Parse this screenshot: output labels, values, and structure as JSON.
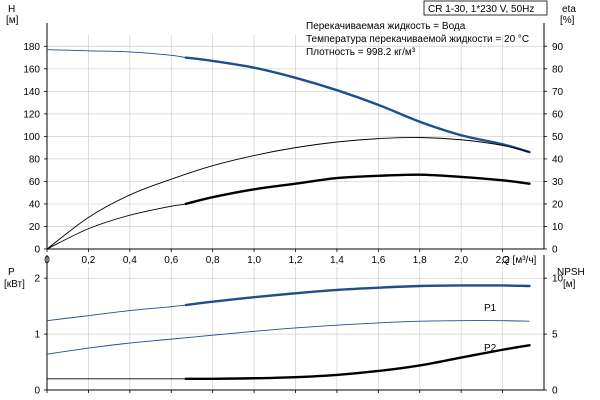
{
  "header": {
    "model": "CR 1-30, 1*230 V, 50Hz",
    "liquid": "Перекачиваемая жидкость = Вода",
    "temperature": "Температура перекачиваемой жидкости = 20 °C",
    "density": "Плотность = 998.2 кг/м³"
  },
  "colors": {
    "blue": "#1f4e8c",
    "black": "#000000",
    "grid": "#cfcfcf"
  },
  "chart_data": [
    {
      "id": "upper",
      "type": "line",
      "y_left_label": [
        "H",
        "[м]"
      ],
      "y_right_label": [
        "eta",
        "[%]"
      ],
      "x_label": "Q [м³/ч]",
      "xlim": [
        0,
        2.4
      ],
      "ylim_left": [
        0,
        190
      ],
      "ylim_right": [
        0,
        95
      ],
      "x_ticks": [
        "0",
        "0,2",
        "0,4",
        "0,6",
        "0,8",
        "1,0",
        "1,2",
        "1,4",
        "1,6",
        "1,8",
        "2,0",
        "2,2"
      ],
      "y_left_ticks": [
        0,
        20,
        40,
        60,
        80,
        100,
        120,
        140,
        160,
        180
      ],
      "y_right_ticks": [
        0,
        10,
        20,
        30,
        40,
        50,
        60,
        70,
        80,
        90
      ],
      "grid": true,
      "series": [
        {
          "axis": "left",
          "color": "#1f4e8c",
          "x": [
            0,
            0.2,
            0.4,
            0.6,
            0.67,
            0.8,
            1.0,
            1.2,
            1.4,
            1.6,
            1.8,
            2.0,
            2.2,
            2.33
          ],
          "y": [
            177,
            176,
            175,
            172,
            170,
            167,
            161,
            152,
            141,
            128,
            113,
            101,
            93,
            86
          ],
          "thick_from": 0.67
        },
        {
          "axis": "right",
          "color": "#000000",
          "x": [
            0,
            0.2,
            0.4,
            0.6,
            0.8,
            1.0,
            1.2,
            1.4,
            1.6,
            1.8,
            2.0,
            2.2,
            2.33
          ],
          "y": [
            0,
            14,
            24,
            31,
            37,
            41.5,
            45,
            47.5,
            49,
            49.5,
            48.5,
            46,
            43
          ]
        },
        {
          "axis": "right",
          "color": "#000000",
          "x": [
            0,
            0.2,
            0.4,
            0.6,
            0.67,
            0.8,
            1.0,
            1.2,
            1.4,
            1.6,
            1.8,
            2.0,
            2.2,
            2.33
          ],
          "y": [
            0,
            9,
            15,
            19,
            20,
            23,
            26.5,
            29,
            31.5,
            32.5,
            33,
            32,
            30.5,
            29
          ],
          "thick_from": 0.67
        }
      ]
    },
    {
      "id": "lower",
      "type": "line",
      "y_left_label": [
        "P",
        "[кВт]"
      ],
      "y_right_label": [
        "NPSH",
        "[м]"
      ],
      "xlim": [
        0,
        2.4
      ],
      "ylim_left": [
        0,
        2.2
      ],
      "ylim_right": [
        0,
        11
      ],
      "y_left_ticks": [
        0,
        1,
        2
      ],
      "y_right_ticks": [
        0,
        5,
        10
      ],
      "grid": true,
      "series": [
        {
          "name": "P1",
          "axis": "left",
          "color": "#1f4e8c",
          "x": [
            0,
            0.2,
            0.4,
            0.6,
            0.67,
            0.8,
            1.0,
            1.2,
            1.4,
            1.6,
            1.8,
            2.0,
            2.2,
            2.33
          ],
          "y": [
            1.24,
            1.33,
            1.42,
            1.49,
            1.52,
            1.58,
            1.66,
            1.73,
            1.79,
            1.83,
            1.86,
            1.87,
            1.87,
            1.86
          ],
          "thick_from": 0.67
        },
        {
          "name": "P2",
          "axis": "left",
          "color": "#1f4e8c",
          "x": [
            0,
            0.2,
            0.4,
            0.6,
            0.8,
            1.0,
            1.2,
            1.4,
            1.6,
            1.8,
            2.0,
            2.2,
            2.33
          ],
          "y": [
            0.64,
            0.75,
            0.84,
            0.91,
            0.98,
            1.05,
            1.11,
            1.16,
            1.2,
            1.23,
            1.24,
            1.24,
            1.23
          ]
        },
        {
          "axis": "right",
          "color": "#000000",
          "x": [
            0,
            0.2,
            0.4,
            0.67,
            0.8,
            1.0,
            1.2,
            1.4,
            1.6,
            1.8,
            2.0,
            2.2,
            2.33
          ],
          "y": [
            1.0,
            1.0,
            1.0,
            1.0,
            1.0,
            1.05,
            1.15,
            1.35,
            1.7,
            2.2,
            2.9,
            3.6,
            4.0
          ],
          "thick_from": 0.67
        }
      ]
    }
  ]
}
